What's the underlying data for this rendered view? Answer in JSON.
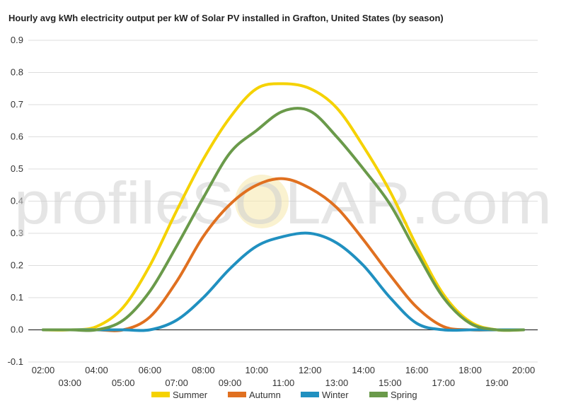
{
  "chart_data": {
    "type": "line",
    "title": "Hourly avg kWh electricity output per kW of Solar PV installed in Grafton, United States (by season)",
    "watermark": "profileSOLAR.com",
    "xlabel": "",
    "ylabel": "",
    "ylim": [
      -0.1,
      0.9
    ],
    "yticks": [
      "-0.1",
      "0.0",
      "0.1",
      "0.2",
      "0.3",
      "0.4",
      "0.5",
      "0.6",
      "0.7",
      "0.8",
      "0.9"
    ],
    "x": [
      "02:00",
      "03:00",
      "04:00",
      "05:00",
      "06:00",
      "07:00",
      "08:00",
      "09:00",
      "10:00",
      "11:00",
      "12:00",
      "13:00",
      "14:00",
      "15:00",
      "16:00",
      "17:00",
      "18:00",
      "19:00",
      "20:00"
    ],
    "grid": true,
    "legend": "bottom",
    "series": [
      {
        "name": "Summer",
        "color": "#f5d200",
        "values": [
          0.0,
          0.0,
          0.01,
          0.07,
          0.2,
          0.37,
          0.53,
          0.66,
          0.75,
          0.765,
          0.75,
          0.69,
          0.57,
          0.43,
          0.26,
          0.11,
          0.025,
          0.0,
          0.0
        ]
      },
      {
        "name": "Autumn",
        "color": "#e07020",
        "values": [
          0.0,
          0.0,
          0.0,
          0.0,
          0.04,
          0.15,
          0.29,
          0.39,
          0.45,
          0.47,
          0.44,
          0.38,
          0.28,
          0.17,
          0.07,
          0.01,
          0.0,
          0.0,
          0.0
        ]
      },
      {
        "name": "Winter",
        "color": "#2090c0",
        "values": [
          0.0,
          0.0,
          0.0,
          0.0,
          0.0,
          0.03,
          0.1,
          0.19,
          0.26,
          0.29,
          0.3,
          0.27,
          0.2,
          0.1,
          0.02,
          0.0,
          0.0,
          0.0,
          0.0
        ]
      },
      {
        "name": "Spring",
        "color": "#6a9a4a",
        "values": [
          0.0,
          0.0,
          0.0,
          0.03,
          0.12,
          0.26,
          0.41,
          0.55,
          0.62,
          0.68,
          0.68,
          0.6,
          0.5,
          0.39,
          0.24,
          0.1,
          0.02,
          0.0,
          0.0
        ]
      }
    ]
  }
}
